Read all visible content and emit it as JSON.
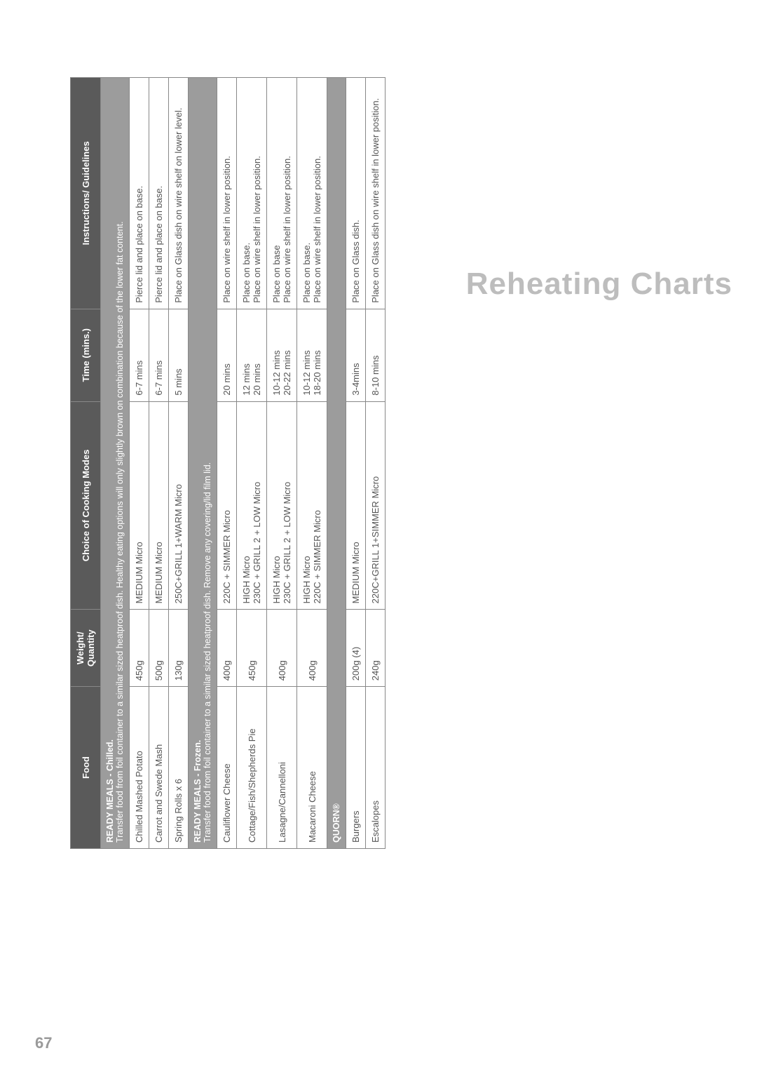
{
  "sideTitle": "Reheating Charts",
  "pageNumber": "67",
  "columns": {
    "food": "Food",
    "weight": "Weight/\nQuantity",
    "modes": "Choice of Cooking Modes",
    "time": "Time (mins.)",
    "instr": "Instructions/ Guidelines"
  },
  "section1": {
    "heading": "READY MEALS - Chilled.",
    "note": "Transfer food from foil container to a similar sized heatproof dish. Healthy eating options will only slightly brown on combination because of the lower fat content."
  },
  "rows1": [
    {
      "food": "Chilled Mashed Potato",
      "weight": "450g",
      "modes": "MEDIUM Micro",
      "time": "6-7 mins",
      "instr": "Pierce lid and place on base."
    },
    {
      "food": "Carrot and Swede Mash",
      "weight": "500g",
      "modes": "MEDIUM Micro",
      "time": "6-7 mins",
      "instr": "Pierce lid and place on base."
    },
    {
      "food": "Spring Rolls x 6",
      "weight": "130g",
      "modes": "250C+GRILL 1+WARM Micro",
      "time": "5 mins",
      "instr": "Place on Glass dish on wire shelf on lower level."
    }
  ],
  "section2": {
    "heading": "READY MEALS - Frozen.",
    "note": "Transfer food from foil container to a similar sized heatproof dish. Remove any covering/lid film lid."
  },
  "rows2": [
    {
      "food": "Cauliflower Cheese",
      "weight": "400g",
      "modes": "220C + SIMMER Micro",
      "time": "20 mins",
      "instr": "Place on wire shelf in lower position."
    },
    {
      "food": "Cottage/Fish/Shepherds Pie",
      "weight": "450g",
      "modes": "HIGH Micro\n230C + GRILL 2 + LOW Micro",
      "time": "12 mins\n20 mins",
      "instr": "Place on base.\nPlace on wire shelf in lower position."
    },
    {
      "food": "Lasagne/Cannelloni",
      "weight": "400g",
      "modes": "HIGH Micro\n230C + GRILL 2 + LOW Micro",
      "time": "10-12 mins\n20-22 mins",
      "instr": "Place on base\nPlace on wire shelf in lower position."
    },
    {
      "food": "Macaroni Cheese",
      "weight": "400g",
      "modes": "HIGH Micro\n220C + SIMMER Micro",
      "time": "10-12 mins\n18-20 mins",
      "instr": "Place on base.\nPlace on wire shelf in lower position."
    }
  ],
  "section3": {
    "heading": "QUORN®"
  },
  "rows3": [
    {
      "food": "Burgers",
      "weight": "200g (4)",
      "modes": "MEDIUM Micro",
      "time": "3-4mins",
      "instr": "Place on Glass  dish."
    },
    {
      "food": "Escalopes",
      "weight": "240g",
      "modes": "220C+GRILL 1+SIMMER Micro",
      "time": "8-10 mins",
      "instr": "Place on Glass  dish on wire shelf in lower position."
    }
  ],
  "colors": {
    "headerBg": "#5a5a5a",
    "sectionBg": "#9c9c9c",
    "border": "#888888",
    "text": "#555555",
    "sideTitle": "#bdbdbd",
    "pageNum": "#9a9a9a",
    "background": "#ffffff"
  }
}
